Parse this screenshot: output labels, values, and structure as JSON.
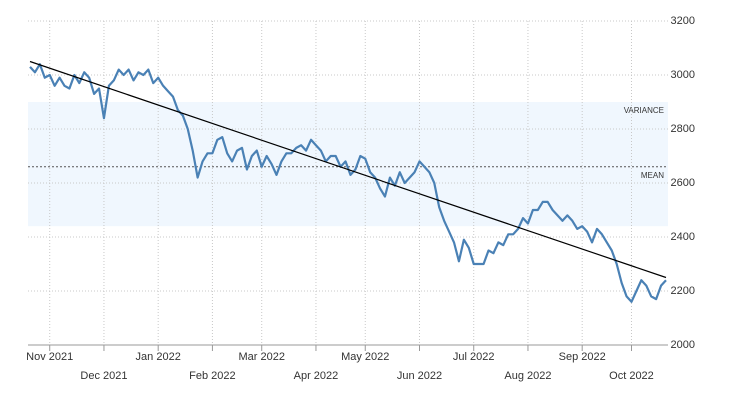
{
  "chart_data": {
    "type": "line",
    "categories": [
      null,
      null,
      null,
      null,
      "Nov 2021",
      null,
      null,
      null,
      null,
      null,
      null,
      null,
      null,
      null,
      null,
      "Dec 2021",
      null,
      null,
      null,
      null,
      null,
      null,
      null,
      null,
      null,
      null,
      "Jan 2022",
      null,
      null,
      null,
      null,
      null,
      null,
      null,
      null,
      null,
      null,
      "Feb 2022",
      null,
      null,
      null,
      null,
      null,
      null,
      null,
      null,
      null,
      "Mar 2022",
      null,
      null,
      null,
      null,
      null,
      null,
      null,
      null,
      null,
      null,
      "Apr 2022",
      null,
      null,
      null,
      null,
      null,
      null,
      null,
      null,
      null,
      "May 2022",
      null,
      null,
      null,
      null,
      null,
      null,
      null,
      null,
      null,
      null,
      "Jun 2022",
      null,
      null,
      null,
      null,
      null,
      null,
      null,
      null,
      null,
      null,
      "Jul 2022",
      null,
      null,
      null,
      null,
      null,
      null,
      null,
      null,
      null,
      null,
      "Aug 2022",
      null,
      null,
      null,
      null,
      null,
      null,
      null,
      null,
      null,
      null,
      "Sep 2022",
      null,
      null,
      null,
      null,
      null,
      null,
      null,
      null,
      null,
      "Oct 2022",
      null,
      null,
      null,
      null,
      null,
      null,
      null
    ],
    "values": [
      3030,
      3010,
      3040,
      2990,
      3000,
      2960,
      2990,
      2960,
      2950,
      3000,
      2970,
      3010,
      2990,
      2930,
      2950,
      2840,
      2960,
      2980,
      3020,
      3000,
      3020,
      2980,
      3010,
      3000,
      3020,
      2970,
      2990,
      2960,
      2940,
      2920,
      2870,
      2850,
      2800,
      2720,
      2620,
      2680,
      2710,
      2710,
      2760,
      2770,
      2710,
      2680,
      2720,
      2730,
      2650,
      2700,
      2720,
      2660,
      2700,
      2670,
      2630,
      2680,
      2710,
      2710,
      2730,
      2740,
      2720,
      2760,
      2740,
      2720,
      2680,
      2700,
      2700,
      2660,
      2680,
      2630,
      2650,
      2700,
      2690,
      2640,
      2620,
      2580,
      2550,
      2620,
      2590,
      2640,
      2600,
      2620,
      2640,
      2680,
      2660,
      2640,
      2600,
      2510,
      2460,
      2420,
      2380,
      2310,
      2390,
      2360,
      2300,
      2300,
      2300,
      2350,
      2340,
      2380,
      2370,
      2410,
      2410,
      2430,
      2470,
      2450,
      2500,
      2500,
      2530,
      2530,
      2500,
      2480,
      2460,
      2480,
      2460,
      2430,
      2440,
      2420,
      2380,
      2430,
      2410,
      2380,
      2350,
      2300,
      2230,
      2180,
      2160,
      2200,
      2240,
      2220,
      2180,
      2170,
      2220,
      2240
    ],
    "color": "#4a81b5",
    "trend": [
      3050,
      2250
    ],
    "mean": {
      "label": "MEAN",
      "value": 2660
    },
    "variance": {
      "label": "VARIANCE",
      "range": [
        2440,
        2900
      ]
    },
    "ylim": [
      2000,
      3200
    ],
    "yticks": [
      2000,
      2200,
      2400,
      2600,
      2800,
      3000,
      3200
    ],
    "grid": true
  }
}
